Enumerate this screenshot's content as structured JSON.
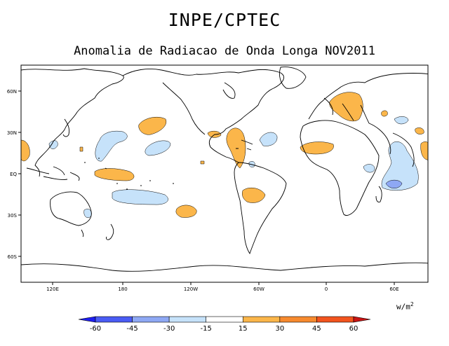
{
  "header": {
    "title": "INPE/CPTEC",
    "subtitle": "Anomalia de Radiacao de Onda Longa NOV2011"
  },
  "map": {
    "lat_labels": [
      "60N",
      "30N",
      "EQ",
      "30S",
      "60S"
    ],
    "lon_labels": [
      "120E",
      "180",
      "120W",
      "60W",
      "0",
      "60E"
    ]
  },
  "colorbar": {
    "units": "w/m",
    "units_exp": "2",
    "tick_labels": [
      "-60",
      "-45",
      "-30",
      "-15",
      "15",
      "30",
      "45",
      "60"
    ],
    "colors": [
      "#1e1ef0",
      "#4a5cf4",
      "#8ea8f4",
      "#c6e2fa",
      "#ffffff",
      "#fbb64a",
      "#f78a2e",
      "#f2541e",
      "#c81414"
    ]
  }
}
